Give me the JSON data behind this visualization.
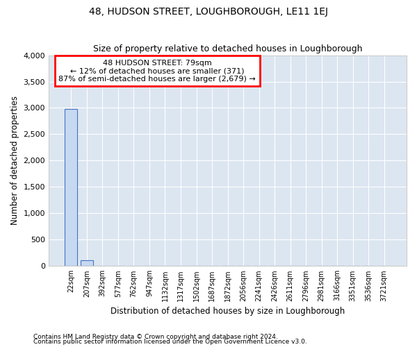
{
  "title": "48, HUDSON STREET, LOUGHBOROUGH, LE11 1EJ",
  "subtitle": "Size of property relative to detached houses in Loughborough",
  "xlabel": "Distribution of detached houses by size in Loughborough",
  "ylabel": "Number of detached properties",
  "bin_labels": [
    "22sqm",
    "207sqm",
    "392sqm",
    "577sqm",
    "762sqm",
    "947sqm",
    "1132sqm",
    "1317sqm",
    "1502sqm",
    "1687sqm",
    "1872sqm",
    "2056sqm",
    "2241sqm",
    "2426sqm",
    "2611sqm",
    "2796sqm",
    "2981sqm",
    "3166sqm",
    "3351sqm",
    "3536sqm",
    "3721sqm"
  ],
  "bar_values": [
    2980,
    110,
    0,
    0,
    0,
    0,
    0,
    0,
    0,
    0,
    0,
    0,
    0,
    0,
    0,
    0,
    0,
    0,
    0,
    0,
    0
  ],
  "bar_color": "#c6d9f0",
  "bar_edge_color": "#4472c4",
  "background_color": "#dce6f1",
  "ylim": [
    0,
    4000
  ],
  "yticks": [
    0,
    500,
    1000,
    1500,
    2000,
    2500,
    3000,
    3500,
    4000
  ],
  "annotation_text": "48 HUDSON STREET: 79sqm\n← 12% of detached houses are smaller (371)\n87% of semi-detached houses are larger (2,679) →",
  "annotation_box_color": "#ff0000",
  "footer_line1": "Contains HM Land Registry data © Crown copyright and database right 2024.",
  "footer_line2": "Contains public sector information licensed under the Open Government Licence v3.0."
}
